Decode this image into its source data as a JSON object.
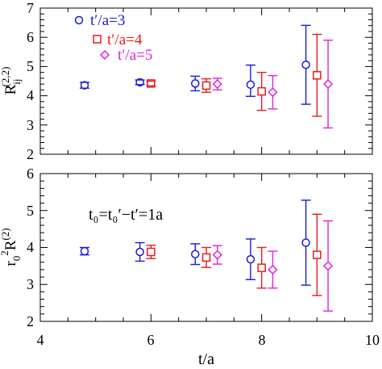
{
  "figure": {
    "annotation": "t₀=t₀′−t′=1a",
    "xlabel": "t/a",
    "xticks": [
      "4",
      "6",
      "8",
      "10"
    ]
  },
  "chart_data": [
    {
      "type": "scatter",
      "panel": "top",
      "ylabel_main": "R",
      "ylabel_sub": "ij",
      "ylabel_sup": "(2,2)",
      "xlim": [
        4,
        10
      ],
      "ylim": [
        2,
        7
      ],
      "yticks": [
        "2",
        "3",
        "4",
        "5",
        "6",
        "7"
      ],
      "legend_position": "top-left",
      "series": [
        {
          "name": "t′/a=3",
          "marker": "circle",
          "color": "#1a1adb",
          "x": [
            4.8,
            5.8,
            6.8,
            7.8,
            8.8
          ],
          "y": [
            4.36,
            4.46,
            4.42,
            4.38,
            5.06
          ],
          "yerr_low": [
            0.1,
            0.08,
            0.25,
            0.4,
            1.35
          ],
          "yerr_high": [
            0.1,
            0.08,
            0.25,
            0.67,
            1.35
          ]
        },
        {
          "name": "t′/a=4",
          "marker": "square",
          "color": "#e81c1c",
          "x": [
            6.0,
            7.0,
            8.0,
            9.0
          ],
          "y": [
            4.42,
            4.35,
            4.15,
            4.7
          ],
          "yerr_low": [
            0.08,
            0.23,
            0.65,
            1.4
          ],
          "yerr_high": [
            0.08,
            0.23,
            0.65,
            1.4
          ]
        },
        {
          "name": "t′/a=5",
          "marker": "diamond",
          "color": "#e020e0",
          "x": [
            7.2,
            8.2,
            9.2
          ],
          "y": [
            4.4,
            4.12,
            4.4
          ],
          "yerr_low": [
            0.2,
            0.57,
            1.5
          ],
          "yerr_high": [
            0.2,
            0.57,
            1.5
          ]
        }
      ]
    },
    {
      "type": "scatter",
      "panel": "bottom",
      "ylabel_main": "r",
      "ylabel_sub": "0",
      "ylabel_sup1": "2",
      "ylabel_main2": "R",
      "ylabel_sup2": "(2)",
      "xlim": [
        4,
        10
      ],
      "ylim": [
        2,
        6
      ],
      "yticks": [
        "2",
        "3",
        "4",
        "5",
        "6"
      ],
      "series": [
        {
          "name": "t′/a=3",
          "marker": "circle",
          "color": "#1a1adb",
          "x": [
            4.8,
            5.8,
            6.8,
            7.8,
            8.8
          ],
          "y": [
            3.9,
            3.88,
            3.82,
            3.68,
            4.13
          ],
          "yerr_low": [
            0.1,
            0.25,
            0.28,
            0.55,
            1.15
          ],
          "yerr_high": [
            0.1,
            0.25,
            0.28,
            0.55,
            1.15
          ]
        },
        {
          "name": "t′/a=4",
          "marker": "square",
          "color": "#e81c1c",
          "x": [
            6.0,
            7.0,
            8.0,
            9.0
          ],
          "y": [
            3.88,
            3.73,
            3.45,
            3.8
          ],
          "yerr_low": [
            0.18,
            0.27,
            0.55,
            1.1
          ],
          "yerr_high": [
            0.18,
            0.27,
            0.55,
            1.1
          ]
        },
        {
          "name": "t′/a=5",
          "marker": "diamond",
          "color": "#e020e0",
          "x": [
            7.2,
            8.2,
            9.2
          ],
          "y": [
            3.8,
            3.4,
            3.5
          ],
          "yerr_low": [
            0.25,
            0.5,
            1.22
          ],
          "yerr_high": [
            0.25,
            0.5,
            1.22
          ]
        }
      ]
    }
  ]
}
